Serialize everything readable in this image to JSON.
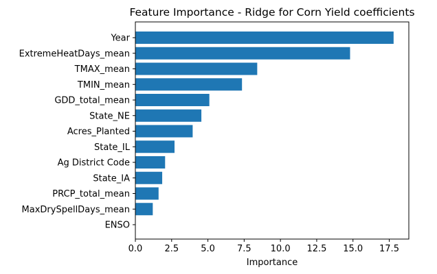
{
  "chart_data": {
    "type": "bar",
    "orientation": "horizontal",
    "title": "Feature Importance - Ridge for Corn Yield coefficients",
    "xlabel": "Importance",
    "ylabel": "",
    "categories": [
      "Year",
      "ExtremeHeatDays_mean",
      "TMAX_mean",
      "TMIN_mean",
      "GDD_total_mean",
      "State_NE",
      "Acres_Planted",
      "State_IL",
      "Ag District Code",
      "State_IA",
      "PRCP_total_mean",
      "MaxDrySpellDays_mean",
      "ENSO"
    ],
    "values": [
      17.8,
      14.8,
      8.4,
      7.35,
      5.1,
      4.55,
      3.95,
      2.7,
      2.05,
      1.85,
      1.6,
      1.2,
      0.0
    ],
    "xlim": [
      0,
      18.85
    ],
    "xticks": [
      "0.0",
      "2.5",
      "5.0",
      "7.5",
      "10.0",
      "12.5",
      "15.0",
      "17.5"
    ],
    "bar_color": "#1f77b4",
    "grid": false,
    "legend": "none"
  }
}
